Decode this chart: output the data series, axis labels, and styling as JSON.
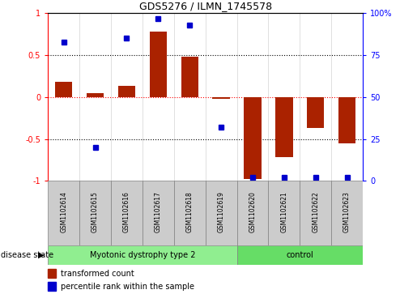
{
  "title": "GDS5276 / ILMN_1745578",
  "samples": [
    "GSM1102614",
    "GSM1102615",
    "GSM1102616",
    "GSM1102617",
    "GSM1102618",
    "GSM1102619",
    "GSM1102620",
    "GSM1102621",
    "GSM1102622",
    "GSM1102623"
  ],
  "red_bars": [
    0.18,
    0.05,
    0.13,
    0.78,
    0.48,
    -0.02,
    -0.98,
    -0.72,
    -0.37,
    -0.55
  ],
  "blue_dots_pct": [
    83,
    20,
    85,
    97,
    93,
    32,
    2,
    2,
    2,
    2
  ],
  "groups": [
    {
      "label": "Myotonic dystrophy type 2",
      "start": 0,
      "end": 5,
      "color": "#90EE90"
    },
    {
      "label": "control",
      "start": 6,
      "end": 9,
      "color": "#66DD66"
    }
  ],
  "left_ylim": [
    -1.0,
    1.0
  ],
  "right_ylim": [
    0,
    100
  ],
  "yticks_left": [
    -1,
    -0.5,
    0,
    0.5,
    1
  ],
  "yticks_right": [
    0,
    25,
    50,
    75,
    100
  ],
  "bar_color": "#AA2200",
  "dot_color": "#0000CC",
  "legend_red_label": "transformed count",
  "legend_blue_label": "percentile rank within the sample",
  "disease_state_label": "disease state",
  "sample_box_color": "#CCCCCC",
  "title_fontsize": 9,
  "tick_fontsize": 7,
  "label_fontsize": 7,
  "sample_fontsize": 5.5
}
